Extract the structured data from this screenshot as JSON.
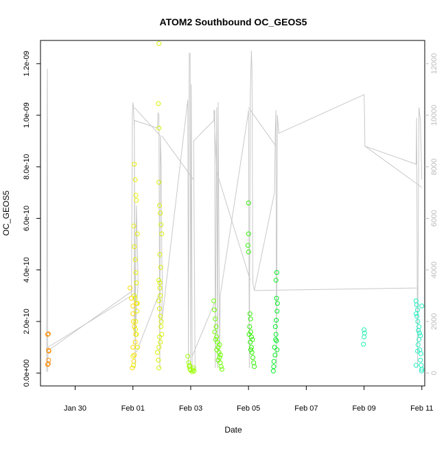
{
  "chart_data": {
    "type": "scatter",
    "title": "ATOM2 Southbound OC_GEOS5",
    "xlabel": "Date",
    "ylabel": "OC_GEOS5",
    "x_ticks": [
      {
        "label": "Jan 30",
        "day": 0
      },
      {
        "label": "Feb 01",
        "day": 2
      },
      {
        "label": "Feb 03",
        "day": 4
      },
      {
        "label": "Feb 05",
        "day": 6
      },
      {
        "label": "Feb 07",
        "day": 8
      },
      {
        "label": "Feb 09",
        "day": 10
      },
      {
        "label": "Feb 11",
        "day": 12
      }
    ],
    "xlim": [
      -1.2,
      12.1
    ],
    "ylim": [
      -5e-11,
      1.29e-09
    ],
    "y_ticks": [
      {
        "label": "0.0e+00",
        "value": 0
      },
      {
        "label": "2.0e-10",
        "value": 2e-10
      },
      {
        "label": "4.0e-10",
        "value": 4e-10
      },
      {
        "label": "6.0e-10",
        "value": 6e-10
      },
      {
        "label": "8.0e-10",
        "value": 8e-10
      },
      {
        "label": "1.0e-09",
        "value": 1e-09
      },
      {
        "label": "1.2e-09",
        "value": 1.2e-09
      }
    ],
    "y2lim": [
      -500,
      12900
    ],
    "y2_ticks": [
      {
        "label": "0",
        "value": 0
      },
      {
        "label": "2000",
        "value": 2000
      },
      {
        "label": "4000",
        "value": 4000
      },
      {
        "label": "6000",
        "value": 6000
      },
      {
        "label": "8000",
        "value": 8000
      },
      {
        "label": "10000",
        "value": 10000
      },
      {
        "label": "12000",
        "value": 12000
      }
    ],
    "altitude_color": "#c8c8c8",
    "series": [
      {
        "color": "#ff8c00",
        "points": [
          [
            -0.95,
            1.5e-10
          ],
          [
            -0.93,
            1.52e-10
          ],
          [
            -0.92,
            8.8e-11
          ],
          [
            -0.91,
            8.5e-11
          ],
          [
            -0.92,
            5e-11
          ],
          [
            -0.95,
            3.3e-11
          ],
          [
            -0.93,
            3.6e-11
          ]
        ]
      },
      {
        "color": "#ffd700",
        "points": [
          [
            1.9,
            3.3e-10
          ],
          [
            1.95,
            2.9e-10
          ],
          [
            2.0,
            2.6e-10
          ],
          [
            2.0,
            2.3e-10
          ],
          [
            2.02,
            2e-10
          ],
          [
            2.05,
            1.8e-10
          ],
          [
            2.08,
            1.2e-10
          ],
          [
            2.0,
            1e-10
          ],
          [
            2.05,
            7e-11
          ],
          [
            2.03,
            4.5e-11
          ],
          [
            1.98,
            2e-11
          ],
          [
            2.1,
            1.5e-10
          ],
          [
            2.12,
            2.7e-10
          ]
        ]
      },
      {
        "color": "#e6f000",
        "points": [
          [
            2.05,
            8.1e-10
          ],
          [
            2.08,
            7.5e-10
          ],
          [
            2.1,
            6.9e-10
          ],
          [
            2.12,
            6.7e-10
          ],
          [
            2.03,
            5.7e-10
          ],
          [
            2.15,
            5.4e-10
          ],
          [
            2.05,
            4.9e-10
          ],
          [
            2.08,
            4.4e-10
          ],
          [
            2.1,
            3.9e-10
          ],
          [
            2.12,
            3.5e-10
          ],
          [
            2.05,
            3e-10
          ],
          [
            2.14,
            2.4e-10
          ],
          [
            2.1,
            2e-10
          ],
          [
            2.12,
            1.5e-10
          ],
          [
            2.16,
            1e-10
          ],
          [
            2.0,
            6.5e-11
          ],
          [
            2.02,
            3e-11
          ],
          [
            2.09,
            1.7e-10
          ],
          [
            2.15,
            2.7e-10
          ],
          [
            2.07,
            2.9e-10
          ]
        ]
      },
      {
        "color": "#d6f000",
        "points": [
          [
            2.9,
            1.278e-09
          ],
          [
            2.88,
            1.045e-09
          ],
          [
            2.9,
            9.5e-10
          ],
          [
            2.9,
            7.4e-10
          ],
          [
            2.92,
            6.5e-10
          ],
          [
            2.95,
            6.2e-10
          ],
          [
            2.97,
            5.75e-10
          ],
          [
            3.0,
            5.4e-10
          ],
          [
            2.93,
            4.6e-10
          ],
          [
            2.96,
            4.1e-10
          ],
          [
            2.9,
            3.6e-10
          ],
          [
            2.93,
            3.3e-10
          ],
          [
            2.95,
            3e-10
          ],
          [
            2.9,
            2.8e-10
          ],
          [
            2.92,
            2.5e-10
          ],
          [
            2.95,
            2.2e-10
          ],
          [
            2.97,
            1.8e-10
          ],
          [
            2.92,
            1.4e-10
          ],
          [
            2.95,
            1.2e-10
          ],
          [
            2.9,
            1e-10
          ],
          [
            2.85,
            8e-11
          ],
          [
            2.88,
            5e-11
          ],
          [
            2.9,
            2e-11
          ],
          [
            2.93,
            3.5e-10
          ],
          [
            3.0,
            1.5e-10
          ],
          [
            2.98,
            2e-10
          ]
        ]
      },
      {
        "color": "#9cff00",
        "points": [
          [
            3.9,
            6.5e-11
          ],
          [
            3.93,
            4e-11
          ],
          [
            3.95,
            2.5e-11
          ],
          [
            3.98,
            1.5e-11
          ],
          [
            4.0,
            1e-11
          ],
          [
            4.05,
            5e-12
          ],
          [
            4.08,
            1.2e-11
          ],
          [
            4.1,
            2e-11
          ],
          [
            4.12,
            8e-12
          ],
          [
            3.96,
            3e-11
          ]
        ]
      },
      {
        "color": "#6cff00",
        "points": [
          [
            4.8,
            2.8e-10
          ],
          [
            4.82,
            2.45e-10
          ],
          [
            4.85,
            2.1e-10
          ],
          [
            4.88,
            1.8e-10
          ],
          [
            4.83,
            1.6e-10
          ],
          [
            4.9,
            1.4e-10
          ],
          [
            4.92,
            1.2e-10
          ],
          [
            4.95,
            1e-10
          ],
          [
            4.98,
            8e-11
          ],
          [
            5.0,
            6e-11
          ],
          [
            5.02,
            4e-11
          ],
          [
            5.05,
            2.5e-11
          ],
          [
            5.08,
            1.5e-11
          ],
          [
            4.86,
            1.3e-10
          ],
          [
            4.9,
            9e-11
          ],
          [
            5.0,
            1.1e-10
          ],
          [
            4.95,
            5e-11
          ],
          [
            5.03,
            7e-11
          ]
        ]
      },
      {
        "color": "#2cf000",
        "points": [
          [
            6.0,
            6.6e-10
          ],
          [
            6.0,
            5.4e-10
          ],
          [
            5.98,
            4.95e-10
          ],
          [
            6.0,
            4.7e-10
          ],
          [
            6.05,
            2.3e-10
          ],
          [
            6.07,
            2.1e-10
          ],
          [
            6.04,
            1.8e-10
          ],
          [
            6.08,
            1.6e-10
          ],
          [
            6.1,
            1.4e-10
          ],
          [
            6.06,
            1.2e-10
          ],
          [
            6.1,
            1e-10
          ],
          [
            6.12,
            8e-11
          ],
          [
            6.15,
            6e-11
          ],
          [
            6.18,
            4e-11
          ],
          [
            6.2,
            2.5e-11
          ],
          [
            6.02,
            1.5e-10
          ],
          [
            6.08,
            9e-11
          ],
          [
            6.14,
            1.3e-10
          ]
        ]
      },
      {
        "color": "#00ee22",
        "points": [
          [
            6.98,
            3.9e-10
          ],
          [
            6.95,
            3.6e-10
          ],
          [
            6.97,
            2.9e-10
          ],
          [
            7.0,
            2.7e-10
          ],
          [
            6.99,
            2.4e-10
          ],
          [
            6.96,
            2.05e-10
          ],
          [
            6.93,
            1.8e-10
          ],
          [
            6.95,
            1.5e-10
          ],
          [
            6.97,
            1.25e-10
          ],
          [
            6.9,
            1e-10
          ],
          [
            6.92,
            7e-11
          ],
          [
            6.88,
            4.5e-11
          ],
          [
            6.87,
            2.5e-11
          ],
          [
            6.86,
            8e-12
          ],
          [
            6.94,
            1.3e-10
          ],
          [
            6.99,
            9e-11
          ]
        ]
      },
      {
        "color": "#20f0b0",
        "points": [
          [
            10.0,
            1.68e-10
          ],
          [
            10.02,
            1.55e-10
          ],
          [
            10.0,
            1.4e-10
          ],
          [
            9.98,
            1.12e-10
          ]
        ]
      },
      {
        "color": "#20f0c0",
        "points": [
          [
            11.8,
            2.8e-10
          ],
          [
            11.82,
            2.65e-10
          ],
          [
            11.85,
            2.45e-10
          ],
          [
            11.8,
            2.3e-10
          ],
          [
            11.83,
            2.2e-10
          ],
          [
            11.86,
            2e-10
          ],
          [
            11.9,
            1.8e-10
          ],
          [
            11.88,
            1.65e-10
          ],
          [
            11.92,
            1.55e-10
          ],
          [
            11.95,
            1.45e-10
          ],
          [
            11.9,
            1.3e-10
          ],
          [
            11.87,
            1.1e-10
          ],
          [
            11.93,
            9e-11
          ],
          [
            11.97,
            7.5e-11
          ],
          [
            11.95,
            5e-11
          ],
          [
            11.98,
            3e-11
          ],
          [
            12.0,
            1.5e-11
          ],
          [
            11.99,
            8e-12
          ],
          [
            11.85,
            8.5e-11
          ],
          [
            11.8,
            3e-11
          ],
          [
            12.0,
            2.6e-10
          ]
        ]
      }
    ],
    "altitude_trace": [
      [
        -0.99,
        50
      ],
      [
        -0.97,
        10300
      ],
      [
        -0.96,
        11800
      ],
      [
        -0.95,
        50
      ],
      [
        -0.94,
        1000
      ],
      [
        1.95,
        3000
      ],
      [
        1.98,
        10000
      ],
      [
        2.0,
        10500
      ],
      [
        2.02,
        10300
      ],
      [
        2.05,
        9500
      ],
      [
        2.08,
        200
      ],
      [
        2.1,
        4300
      ],
      [
        2.12,
        6500
      ],
      [
        2.15,
        5000
      ],
      [
        2.18,
        3500
      ],
      [
        2.1,
        2000
      ],
      [
        2.05,
        1500
      ],
      [
        2.05,
        9800
      ],
      [
        2.85,
        9500
      ],
      [
        2.87,
        10100
      ],
      [
        2.9,
        10000
      ],
      [
        2.93,
        200
      ],
      [
        2.95,
        9200
      ],
      [
        2.98,
        8000
      ],
      [
        3.0,
        4500
      ],
      [
        3.02,
        3500
      ],
      [
        3.0,
        2000
      ],
      [
        3.9,
        10600
      ],
      [
        3.92,
        200
      ],
      [
        3.95,
        12400
      ],
      [
        3.98,
        12400
      ],
      [
        4.0,
        200
      ],
      [
        4.02,
        11200
      ],
      [
        4.05,
        200
      ],
      [
        4.1,
        200
      ],
      [
        4.15,
        200
      ],
      [
        4.1,
        9000
      ],
      [
        4.8,
        9800
      ],
      [
        4.83,
        10200
      ],
      [
        4.85,
        200
      ],
      [
        4.9,
        10300
      ],
      [
        4.93,
        200
      ],
      [
        4.95,
        10500
      ],
      [
        5.0,
        400
      ],
      [
        5.02,
        3000
      ],
      [
        5.98,
        10000
      ],
      [
        6.0,
        10200
      ],
      [
        6.03,
        200
      ],
      [
        6.06,
        10700
      ],
      [
        6.1,
        12500
      ],
      [
        6.12,
        11800
      ],
      [
        6.15,
        3500
      ],
      [
        6.2,
        3200
      ],
      [
        6.9,
        7000
      ],
      [
        6.93,
        9500
      ],
      [
        6.95,
        10200
      ],
      [
        6.97,
        200
      ],
      [
        7.0,
        10000
      ],
      [
        7.05,
        9300
      ],
      [
        10.0,
        10800
      ],
      [
        10.02,
        9800
      ],
      [
        10.03,
        8800
      ],
      [
        11.8,
        8100
      ],
      [
        11.82,
        9900
      ],
      [
        11.85,
        200
      ],
      [
        11.9,
        10300
      ],
      [
        11.95,
        9800
      ],
      [
        12.0,
        7500
      ]
    ],
    "altitude_links": [
      [
        [
          -0.9,
          900
        ],
        [
          2.0,
          3200
        ]
      ],
      [
        [
          2.05,
          10300
        ],
        [
          2.95,
          9200
        ]
      ],
      [
        [
          2.12,
          800
        ],
        [
          2.95,
          3200
        ]
      ],
      [
        [
          3.0,
          9200
        ],
        [
          4.1,
          7500
        ]
      ],
      [
        [
          4.05,
          650
        ],
        [
          4.85,
          2800
        ]
      ],
      [
        [
          4.8,
          10200
        ],
        [
          4.9,
          7800
        ]
      ],
      [
        [
          4.9,
          7800
        ],
        [
          6.06,
          3600
        ]
      ],
      [
        [
          6.0,
          10300
        ],
        [
          6.95,
          8800
        ]
      ],
      [
        [
          6.2,
          3200
        ],
        [
          11.82,
          3300
        ]
      ],
      [
        [
          10.03,
          8800
        ],
        [
          12.0,
          7200
        ]
      ]
    ]
  }
}
